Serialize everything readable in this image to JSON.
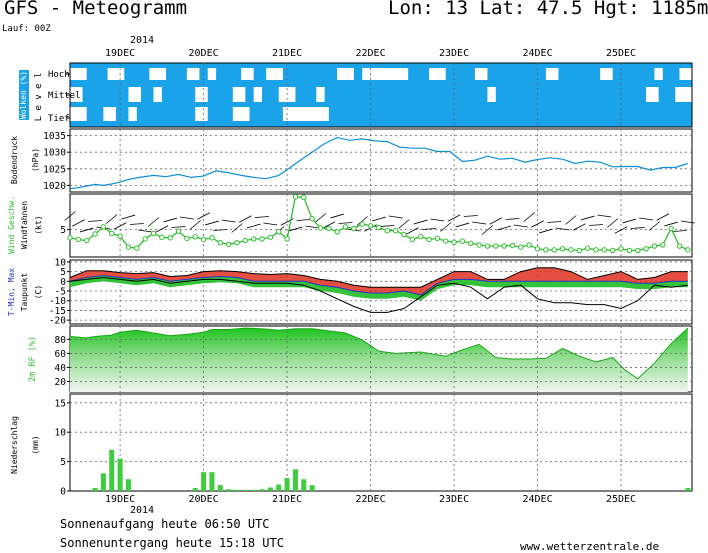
{
  "header": {
    "title": "GFS - Meteogramm",
    "coords": "Lon: 13 Lat: 47.5 Hgt: 1185m",
    "lauf": "Lauf: 00Z"
  },
  "footer": {
    "sunrise": "Sonnenaufgang heute 06:50 UTC",
    "sunset": "Sonnenuntergang heute 15:18 UTC",
    "site": "www.wetterzentrale.de"
  },
  "colors": {
    "sky": "#1aa3e8",
    "cloud": "#ffffff",
    "pressure_line": "#0b8fd6",
    "wind_line": "#2fbf2f",
    "tmax": "#ff0000",
    "tmin": "#0000cc",
    "rh_fill": "#3dcc3d",
    "precip": "#3fcc3f"
  },
  "chart_data": [
    {
      "type": "heatmap",
      "panel": "wolken",
      "ylabel": "Wolken (%)",
      "inner_label": "L e v e l",
      "levels": [
        "Hoch",
        "Mittel",
        "Tief"
      ],
      "x_dates": [
        "19DEC",
        "20DEC",
        "21DEC",
        "22DEC",
        "23DEC",
        "24DEC",
        "25DEC"
      ],
      "year": "2014",
      "cloud_blocks": {
        "Hoch": [
          [
            18.4,
            18.6
          ],
          [
            18.85,
            19.05
          ],
          [
            19.35,
            19.55
          ],
          [
            19.8,
            19.95
          ],
          [
            20.05,
            20.15
          ],
          [
            20.45,
            20.6
          ],
          [
            20.75,
            20.95
          ],
          [
            21.6,
            21.8
          ],
          [
            21.9,
            22.45
          ],
          [
            22.7,
            22.9
          ],
          [
            23.25,
            23.4
          ],
          [
            24.1,
            24.25
          ],
          [
            24.75,
            24.9
          ],
          [
            25.4,
            25.5
          ],
          [
            25.7,
            25.85
          ]
        ],
        "Mittel": [
          [
            18.4,
            18.55
          ],
          [
            19.1,
            19.25
          ],
          [
            19.4,
            19.5
          ],
          [
            19.9,
            20.05
          ],
          [
            20.35,
            20.5
          ],
          [
            20.6,
            20.7
          ],
          [
            20.9,
            21.1
          ],
          [
            21.35,
            21.45
          ],
          [
            23.4,
            23.5
          ],
          [
            25.3,
            25.45
          ],
          [
            25.65,
            25.85
          ]
        ],
        "Tief": [
          [
            18.4,
            18.6
          ],
          [
            18.8,
            18.95
          ],
          [
            19.1,
            19.2
          ],
          [
            19.9,
            20.05
          ],
          [
            20.35,
            20.55
          ],
          [
            20.95,
            21.5
          ]
        ]
      }
    },
    {
      "type": "line",
      "panel": "bodendruck",
      "ylabel": "Bodendruck (hPa)",
      "yticks": [
        1020,
        1025,
        1030,
        1035
      ],
      "ylim": [
        1018,
        1037
      ],
      "x": [
        18.4,
        18.5,
        18.6,
        18.7,
        18.8,
        18.9,
        19.0,
        19.1,
        19.25,
        19.4,
        19.55,
        19.7,
        19.85,
        20.0,
        20.15,
        20.3,
        20.45,
        20.6,
        20.75,
        20.9,
        21.05,
        21.15,
        21.3,
        21.45,
        21.6,
        21.75,
        21.9,
        22.05,
        22.2,
        22.35,
        22.5,
        22.65,
        22.8,
        22.95,
        23.1,
        23.25,
        23.4,
        23.55,
        23.7,
        23.85,
        24.0,
        24.15,
        24.3,
        24.45,
        24.6,
        24.75,
        24.9,
        25.05,
        25.2,
        25.35,
        25.5,
        25.65,
        25.8
      ],
      "values": [
        1019,
        1019.3,
        1019.8,
        1020.3,
        1020,
        1020.4,
        1021,
        1021.8,
        1022.5,
        1023,
        1022.6,
        1023.3,
        1022.4,
        1022.8,
        1024.4,
        1023.8,
        1023,
        1022.4,
        1022,
        1023,
        1025.6,
        1027.4,
        1030,
        1032.6,
        1034.4,
        1033.6,
        1034,
        1033.4,
        1033.2,
        1031.5,
        1031.2,
        1031.2,
        1030.2,
        1030.2,
        1027.2,
        1027.6,
        1028.8,
        1027.9,
        1028.2,
        1027,
        1027.8,
        1028.3,
        1027.9,
        1026.6,
        1027.3,
        1027,
        1025.6,
        1025.7,
        1025.7,
        1024.6,
        1025.4,
        1025.4,
        1026.6
      ]
    },
    {
      "type": "line",
      "panel": "wind",
      "ylabel": "Wind Geschw. Windfahnen (kt)",
      "yticks": [
        5
      ],
      "ylim": [
        0,
        11.5
      ],
      "x": [
        18.4,
        18.5,
        18.6,
        18.7,
        18.8,
        18.9,
        19.0,
        19.1,
        19.2,
        19.3,
        19.4,
        19.5,
        19.6,
        19.7,
        19.8,
        19.9,
        20.0,
        20.1,
        20.2,
        20.3,
        20.4,
        20.5,
        20.6,
        20.7,
        20.8,
        20.9,
        21.0,
        21.1,
        21.2,
        21.3,
        21.4,
        21.5,
        21.6,
        21.7,
        21.8,
        21.9,
        22.0,
        22.1,
        22.2,
        22.3,
        22.4,
        22.5,
        22.6,
        22.7,
        22.8,
        22.9,
        23.0,
        23.1,
        23.2,
        23.3,
        23.4,
        23.5,
        23.6,
        23.7,
        23.8,
        23.9,
        24.0,
        24.1,
        24.2,
        24.3,
        24.4,
        24.5,
        24.6,
        24.7,
        24.8,
        24.9,
        25.0,
        25.1,
        25.2,
        25.3,
        25.4,
        25.5,
        25.6,
        25.7,
        25.8
      ],
      "values": [
        3.5,
        3.2,
        3,
        4.2,
        5.5,
        4.3,
        3.8,
        1.8,
        1.6,
        3.3,
        4.3,
        3.6,
        3.5,
        4.7,
        3.4,
        3.7,
        3.2,
        3.5,
        2.6,
        2.3,
        2.6,
        3,
        3.3,
        3.3,
        3.6,
        4.6,
        3.3,
        11,
        10.9,
        7,
        5.3,
        5.2,
        4.6,
        5.5,
        5.2,
        6,
        5.7,
        5.4,
        4.8,
        4.8,
        4.1,
        3.2,
        3.7,
        3.2,
        3.4,
        2.9,
        2.7,
        2.9,
        2.5,
        2.2,
        2,
        2,
        2,
        2.1,
        1.8,
        2.2,
        1.5,
        1.3,
        1.3,
        1.5,
        1.3,
        1.2,
        1.6,
        1.3,
        1.3,
        1.2,
        1.5,
        1.2,
        1.2,
        1.5,
        2,
        2.2,
        5.2,
        2,
        1.3
      ]
    },
    {
      "type": "area",
      "panel": "temperatur",
      "ylabel": "T-Min, Max Taupunkt (C)",
      "yticks": [
        10,
        5,
        0,
        -5,
        -10,
        -15,
        -20
      ],
      "ylim": [
        -22,
        11
      ],
      "x": [
        18.4,
        18.6,
        18.8,
        19.0,
        19.2,
        19.4,
        19.6,
        19.8,
        20.0,
        20.2,
        20.4,
        20.6,
        20.8,
        21.0,
        21.2,
        21.4,
        21.6,
        21.8,
        22.0,
        22.2,
        22.4,
        22.6,
        22.8,
        23.0,
        23.2,
        23.4,
        23.6,
        23.8,
        24.0,
        24.2,
        24.4,
        24.6,
        24.8,
        25.0,
        25.2,
        25.4,
        25.6,
        25.8
      ],
      "series": [
        {
          "name": "Max",
          "values": [
            2,
            5.5,
            5.5,
            4.5,
            4,
            4.5,
            2.5,
            3,
            5,
            5.5,
            5,
            4,
            3.5,
            4,
            3,
            1,
            0,
            -2,
            -3,
            -3,
            -3,
            -3,
            1,
            5,
            5,
            1,
            1,
            5,
            7,
            7,
            5,
            1,
            3,
            5,
            1,
            2,
            5,
            5
          ]
        },
        {
          "name": "Min",
          "values": [
            0,
            2,
            3,
            2,
            1,
            2,
            0,
            1,
            2,
            2.5,
            2,
            0,
            0,
            0,
            0,
            -2,
            -3,
            -5,
            -6,
            -6,
            -5,
            -7,
            -1,
            1,
            1,
            0,
            0,
            0,
            0,
            0,
            0,
            0,
            0,
            0,
            -1,
            -1,
            0,
            0
          ]
        },
        {
          "name": "Taupunkt",
          "values": [
            0,
            1,
            2,
            1,
            0,
            1,
            -1,
            0,
            1,
            1,
            0,
            -1,
            -1,
            -1,
            -2,
            -5,
            -9,
            -13,
            -16,
            -16,
            -14,
            -8,
            -2,
            -1,
            -3,
            -9,
            -3,
            -2,
            -9,
            -11,
            -11,
            -12,
            -12,
            -14,
            -10,
            -2,
            -3,
            -2
          ]
        }
      ]
    },
    {
      "type": "area",
      "panel": "feuchte",
      "ylabel": "2m RF (%)",
      "yticks": [
        20,
        40,
        60,
        80
      ],
      "ylim": [
        5,
        99
      ],
      "x": [
        18.4,
        18.6,
        18.7,
        18.9,
        19.0,
        19.2,
        19.4,
        19.6,
        19.8,
        20.0,
        20.1,
        20.3,
        20.5,
        20.7,
        20.9,
        21.1,
        21.3,
        21.5,
        21.7,
        21.9,
        22.1,
        22.3,
        22.6,
        22.9,
        23.1,
        23.3,
        23.5,
        23.7,
        23.9,
        24.1,
        24.3,
        24.5,
        24.7,
        24.9,
        25.05,
        25.2,
        25.4,
        25.6,
        25.8
      ],
      "values": [
        84,
        82,
        84,
        86,
        90,
        93,
        89,
        85,
        87,
        90,
        94,
        94,
        96,
        95,
        93,
        95,
        95,
        92,
        89,
        79,
        63,
        60,
        62,
        56,
        65,
        73,
        54,
        52,
        52,
        53,
        67,
        56,
        48,
        54,
        36,
        24,
        46,
        74,
        96
      ]
    },
    {
      "type": "bar",
      "panel": "niederschlag",
      "ylabel": "Niederschlag (mm)",
      "yticks": [
        0,
        5,
        10,
        15
      ],
      "ylim": [
        0,
        16.5
      ],
      "x": [
        18.7,
        18.8,
        18.9,
        19.0,
        19.1,
        19.9,
        20.0,
        20.1,
        20.2,
        20.3,
        20.4,
        20.5,
        20.6,
        20.7,
        20.8,
        20.9,
        21.0,
        21.1,
        21.2,
        21.3,
        25.8
      ],
      "values": [
        0.5,
        3,
        7,
        5.5,
        2,
        0.5,
        3.2,
        3.2,
        1,
        0.3,
        0.2,
        0.2,
        0.2,
        0.3,
        0.6,
        1.1,
        2.2,
        3.7,
        2,
        1,
        0.5
      ]
    }
  ]
}
